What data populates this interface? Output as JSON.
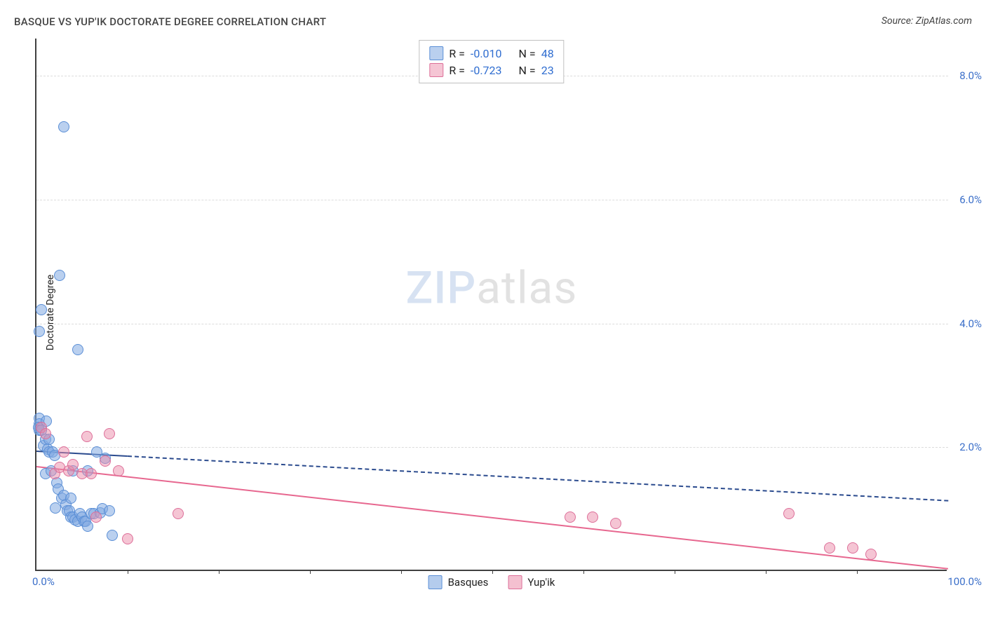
{
  "title": "BASQUE VS YUP'IK DOCTORATE DEGREE CORRELATION CHART",
  "source": "Source: ZipAtlas.com",
  "ylabel": "Doctorate Degree",
  "watermark_zip": "ZIP",
  "watermark_atlas": "atlas",
  "chart": {
    "type": "scatter",
    "xlim": [
      0,
      100
    ],
    "ylim": [
      0,
      8.6
    ],
    "yticks": [
      2.0,
      4.0,
      6.0,
      8.0
    ],
    "ytick_labels": [
      "2.0%",
      "4.0%",
      "6.0%",
      "8.0%"
    ],
    "xtick_minor": [
      10,
      20,
      30,
      40,
      50,
      60,
      70,
      80,
      90
    ],
    "xtick_left": "0.0%",
    "xtick_right": "100.0%",
    "background_color": "#ffffff",
    "grid_color": "#dcdcdc",
    "axis_color": "#404040",
    "series": [
      {
        "name": "Basques",
        "marker_fill": "rgba(130,170,225,0.55)",
        "marker_stroke": "#5b8fd6",
        "trend_color": "#2b4b8e",
        "trend_y0": 1.95,
        "trend_y100": 1.15,
        "trend_solid_until_x": 10,
        "R": "-0.010",
        "N": "48",
        "points": [
          [
            0.3,
            2.45
          ],
          [
            0.3,
            2.35
          ],
          [
            0.2,
            2.3
          ],
          [
            0.3,
            2.25
          ],
          [
            0.5,
            2.25
          ],
          [
            0.8,
            2.0
          ],
          [
            1.0,
            2.1
          ],
          [
            1.1,
            2.4
          ],
          [
            1.2,
            1.95
          ],
          [
            1.4,
            1.9
          ],
          [
            1.4,
            2.1
          ],
          [
            1.8,
            1.9
          ],
          [
            2.0,
            1.85
          ],
          [
            2.2,
            1.4
          ],
          [
            2.4,
            1.3
          ],
          [
            2.8,
            1.15
          ],
          [
            3.0,
            1.2
          ],
          [
            3.2,
            1.05
          ],
          [
            3.4,
            0.95
          ],
          [
            3.6,
            0.95
          ],
          [
            3.8,
            0.85
          ],
          [
            4.0,
            0.85
          ],
          [
            4.2,
            0.8
          ],
          [
            4.5,
            0.78
          ],
          [
            4.8,
            0.9
          ],
          [
            5.0,
            0.85
          ],
          [
            5.2,
            0.78
          ],
          [
            5.4,
            0.78
          ],
          [
            5.6,
            0.7
          ],
          [
            6.0,
            0.9
          ],
          [
            6.3,
            0.9
          ],
          [
            6.6,
            1.9
          ],
          [
            7.0,
            0.92
          ],
          [
            7.2,
            0.98
          ],
          [
            7.5,
            1.8
          ],
          [
            8.0,
            0.95
          ],
          [
            8.3,
            0.55
          ],
          [
            0.5,
            4.2
          ],
          [
            0.3,
            3.85
          ],
          [
            2.5,
            4.75
          ],
          [
            3.0,
            7.15
          ],
          [
            4.5,
            3.55
          ],
          [
            3.8,
            1.15
          ],
          [
            5.6,
            1.6
          ],
          [
            1.0,
            1.55
          ],
          [
            1.6,
            1.6
          ],
          [
            2.1,
            1.0
          ],
          [
            4.0,
            1.6
          ]
        ]
      },
      {
        "name": "Yup'ik",
        "marker_fill": "rgba(235,140,170,0.5)",
        "marker_stroke": "#dd6f99",
        "trend_color": "#e7678f",
        "trend_y0": 1.7,
        "trend_y100": 0.05,
        "trend_solid_until_x": 100,
        "R": "-0.723",
        "N": "23",
        "points": [
          [
            0.5,
            2.3
          ],
          [
            1.0,
            2.2
          ],
          [
            2.0,
            1.55
          ],
          [
            2.5,
            1.65
          ],
          [
            3.0,
            1.9
          ],
          [
            3.5,
            1.6
          ],
          [
            4.0,
            1.7
          ],
          [
            5.0,
            1.55
          ],
          [
            5.5,
            2.15
          ],
          [
            6.0,
            1.55
          ],
          [
            6.5,
            0.85
          ],
          [
            7.5,
            1.75
          ],
          [
            8.0,
            2.2
          ],
          [
            9.0,
            1.6
          ],
          [
            10.0,
            0.5
          ],
          [
            15.5,
            0.9
          ],
          [
            58.5,
            0.85
          ],
          [
            61.0,
            0.85
          ],
          [
            63.5,
            0.75
          ],
          [
            82.5,
            0.9
          ],
          [
            87.0,
            0.35
          ],
          [
            89.5,
            0.35
          ],
          [
            91.5,
            0.25
          ]
        ]
      }
    ],
    "legend_bottom": [
      {
        "label": "Basques",
        "fill": "rgba(130,170,225,0.6)",
        "stroke": "#5b8fd6"
      },
      {
        "label": "Yup'ik",
        "fill": "rgba(235,140,170,0.55)",
        "stroke": "#dd6f99"
      }
    ]
  }
}
